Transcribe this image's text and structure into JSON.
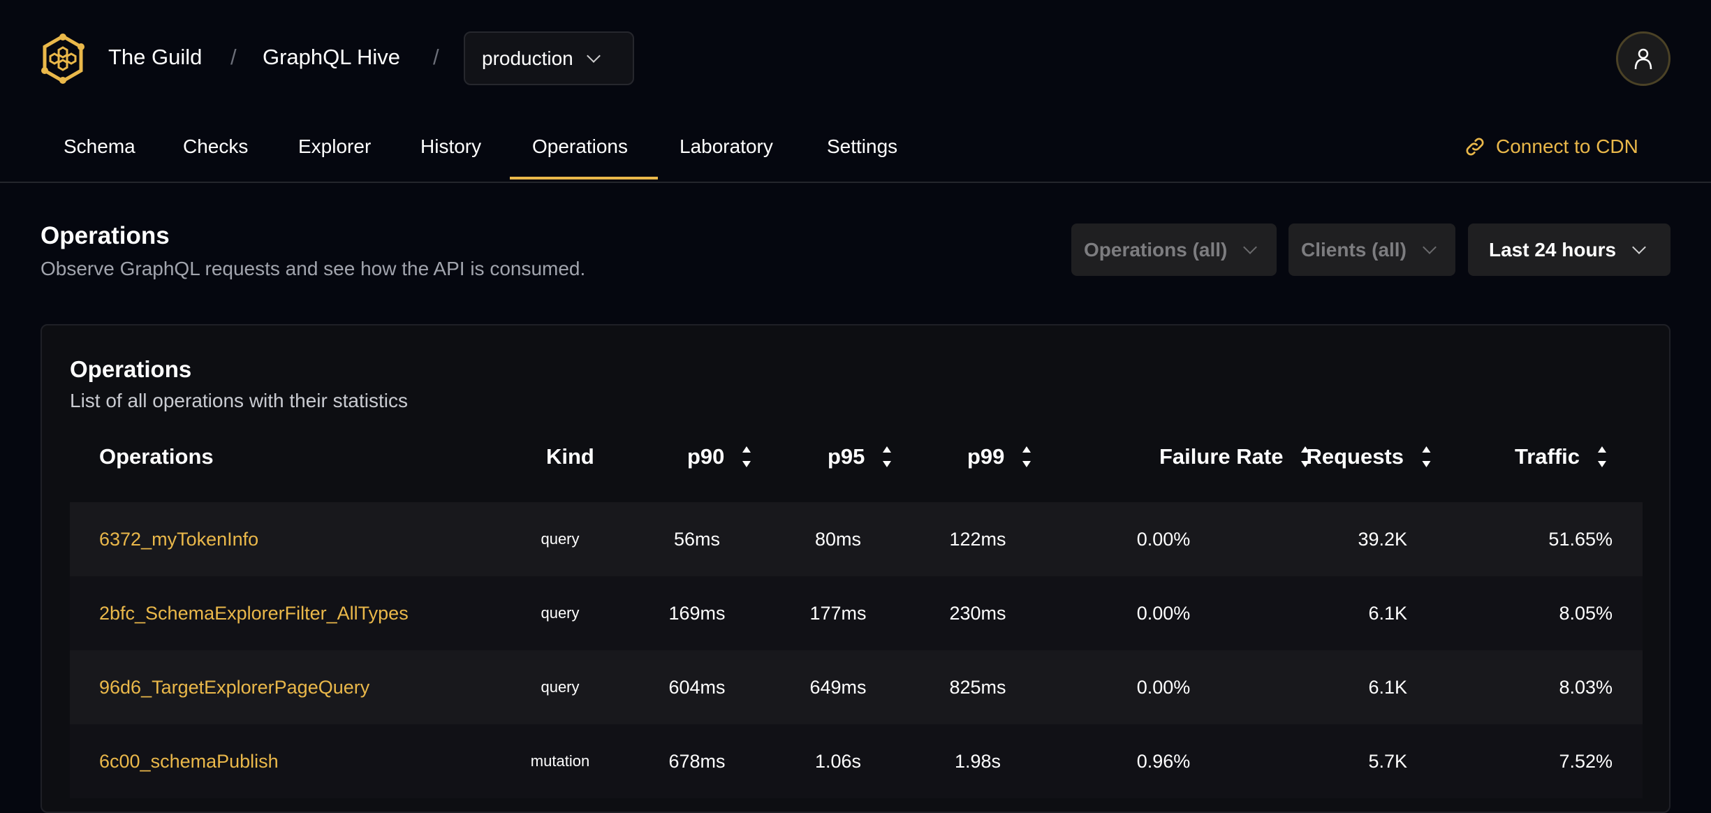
{
  "header": {
    "org": "The Guild",
    "project": "GraphQL Hive",
    "target": "production",
    "separator": "/"
  },
  "nav": {
    "tabs": [
      "Schema",
      "Checks",
      "Explorer",
      "History",
      "Operations",
      "Laboratory",
      "Settings"
    ],
    "active": "Operations",
    "cdn_label": "Connect to CDN"
  },
  "page": {
    "title": "Operations",
    "subtitle": "Observe GraphQL requests and see how the API is consumed.",
    "filters": {
      "operations": "Operations (all)",
      "clients": "Clients (all)",
      "period": "Last 24 hours"
    }
  },
  "card": {
    "title": "Operations",
    "subtitle": "List of all operations with their statistics",
    "columns": [
      "Operations",
      "Kind",
      "p90",
      "p95",
      "p99",
      "Failure Rate",
      "Requests",
      "Traffic"
    ],
    "rows": [
      [
        "6372_myTokenInfo",
        "query",
        "56ms",
        "80ms",
        "122ms",
        "0.00%",
        "39.2K",
        "51.65%"
      ],
      [
        "2bfc_SchemaExplorerFilter_AllTypes",
        "query",
        "169ms",
        "177ms",
        "230ms",
        "0.00%",
        "6.1K",
        "8.05%"
      ],
      [
        "96d6_TargetExplorerPageQuery",
        "query",
        "604ms",
        "649ms",
        "825ms",
        "0.00%",
        "6.1K",
        "8.03%"
      ],
      [
        "6c00_schemaPublish",
        "mutation",
        "678ms",
        "1.06s",
        "1.98s",
        "0.96%",
        "5.7K",
        "7.52%"
      ]
    ]
  },
  "colors": {
    "accent": "#eab84a",
    "background": "#05070f"
  }
}
